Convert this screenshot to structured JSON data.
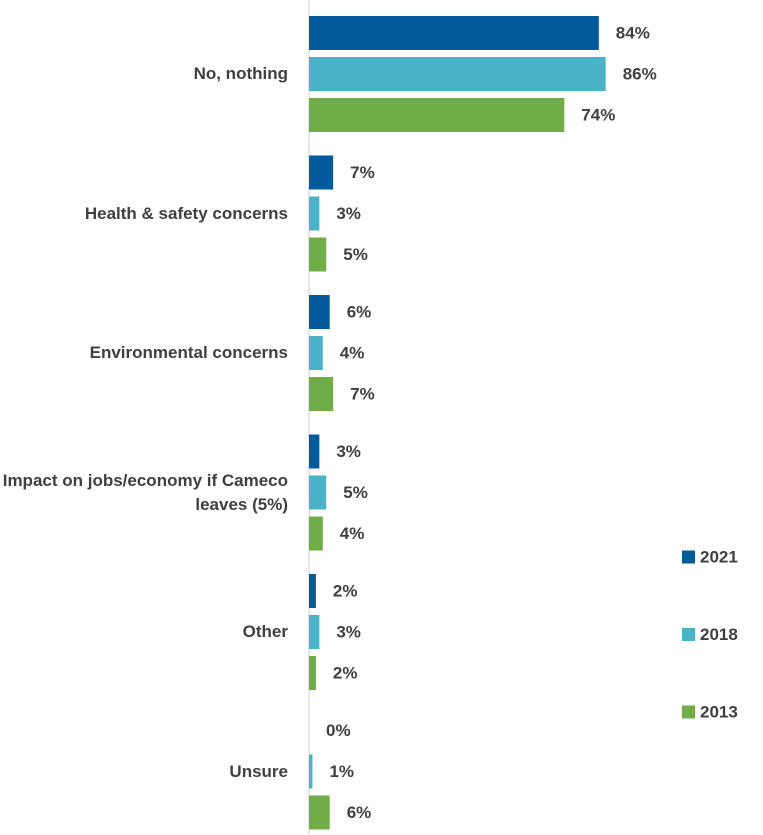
{
  "chart_data": {
    "type": "bar",
    "orientation": "horizontal",
    "categories": [
      "No, nothing",
      "Health & safety concerns",
      "Environmental concerns",
      "Impact on jobs/economy if Cameco leaves (5%)",
      "Other",
      "Unsure"
    ],
    "series": [
      {
        "name": "2021",
        "color": "#005a9c",
        "values": [
          84,
          7,
          6,
          3,
          2,
          0
        ],
        "value_labels": [
          "84%",
          "7%",
          "6%",
          "3%",
          "2%",
          "0%"
        ]
      },
      {
        "name": "2018",
        "color": "#4bb3c8",
        "values": [
          86,
          3,
          4,
          5,
          3,
          1
        ],
        "value_labels": [
          "86%",
          "3%",
          "4%",
          "5%",
          "3%",
          "1%"
        ]
      },
      {
        "name": "2013",
        "color": "#70ad47",
        "values": [
          74,
          5,
          7,
          4,
          2,
          6
        ],
        "value_labels": [
          "74%",
          "5%",
          "7%",
          "4%",
          "2%",
          "6%"
        ]
      }
    ],
    "legend": "right"
  }
}
